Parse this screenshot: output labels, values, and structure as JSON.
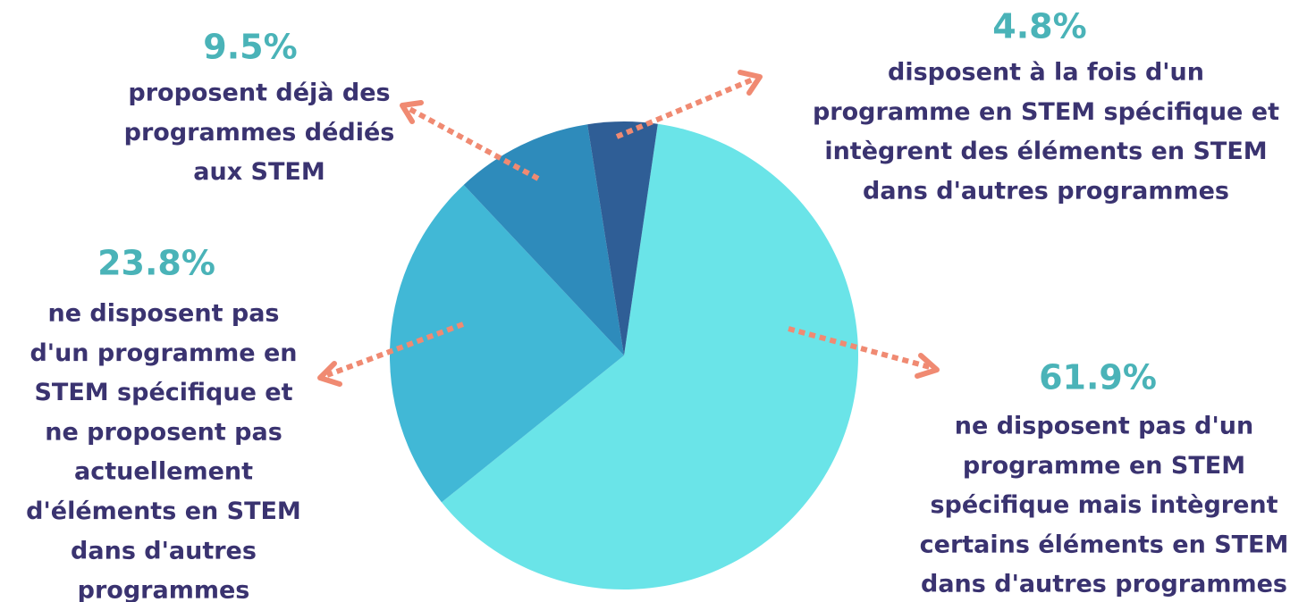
{
  "chart_data": {
    "type": "pie",
    "categories": [
      [
        "ne disposent pas d'un",
        "programme en STEM",
        "spécifique mais intègrent",
        "certains éléments en STEM",
        "dans d'autres programmes"
      ],
      [
        "ne disposent pas",
        "d'un programme en",
        "STEM spécifique et",
        "ne proposent pas",
        "actuellement",
        "d'éléments en STEM",
        "dans d'autres",
        "programmes"
      ],
      [
        "proposent déjà des",
        "programmes dédiés",
        "aux STEM"
      ],
      [
        "disposent à la fois d'un",
        "programme en STEM spécifique et",
        "intègrent des éléments en STEM",
        "dans d'autres programmes"
      ]
    ],
    "values": [
      61.9,
      23.8,
      9.5,
      4.8
    ],
    "value_labels": [
      "61.9%",
      "23.8%",
      "9.5%",
      "4.8%"
    ],
    "colors": [
      "#6ae4e8",
      "#41b8d6",
      "#2e8bbb",
      "#2f5e96"
    ]
  }
}
